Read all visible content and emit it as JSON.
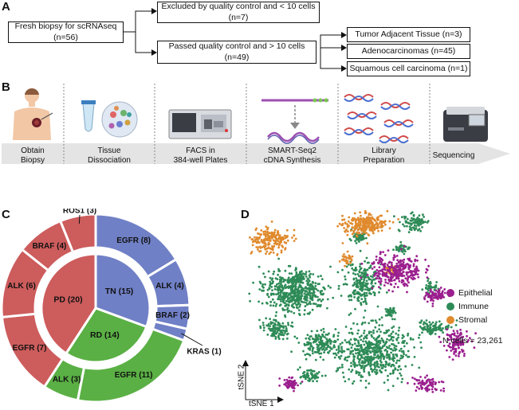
{
  "panels": {
    "a": "A",
    "b": "B",
    "c": "C",
    "d": "D"
  },
  "flow": {
    "root_line1": "Fresh biopsy for scRNAseq",
    "root_line2": "(n=56)",
    "excluded_line1": "Excluded by quality control and < 10 cells",
    "excluded_line2": "(n=7)",
    "passed_line1": "Passed quality control and > 10 cells",
    "passed_line2": "(n=49)",
    "outcomes": [
      "Tumor Adjacent Tissue (n=3)",
      "Adenocarcinomas (n=45)",
      "Squamous cell carcinoma (n=1)"
    ]
  },
  "workflow": {
    "steps": [
      {
        "line1": "Obtain",
        "line2": "Biopsy"
      },
      {
        "line1": "Tissue",
        "line2": "Dissociation"
      },
      {
        "line1": "FACS in",
        "line2": "384-well Plates"
      },
      {
        "line1": "SMART-Seq2",
        "line2": "cDNA Synthesis"
      },
      {
        "line1": "Library",
        "line2": "Preparation"
      },
      {
        "line1": "Sequencing",
        "line2": ""
      }
    ]
  },
  "donut": {
    "colors": {
      "tn": "#7080c6",
      "pd": "#cd5c5c",
      "rd": "#5ab044"
    },
    "inner": [
      {
        "label": "TN (15)",
        "value": 15,
        "group": "tn"
      },
      {
        "label": "RD (14)",
        "value": 14,
        "group": "rd"
      },
      {
        "label": "PD (20)",
        "value": 20,
        "group": "pd"
      }
    ],
    "outer": [
      {
        "label": "EGFR (8)",
        "value": 8,
        "group": "tn"
      },
      {
        "label": "ALK (4)",
        "value": 4,
        "group": "tn"
      },
      {
        "label": "BRAF (2)",
        "value": 2,
        "group": "tn"
      },
      {
        "label": "KRAS (1)",
        "value": 1,
        "group": "tn"
      },
      {
        "label": "EGFR (11)",
        "value": 11,
        "group": "rd"
      },
      {
        "label": "ALK (3)",
        "value": 3,
        "group": "rd"
      },
      {
        "label": "EGFR (7)",
        "value": 7,
        "group": "pd"
      },
      {
        "label": "ALK (6)",
        "value": 6,
        "group": "pd"
      },
      {
        "label": "BRAF (4)",
        "value": 4,
        "group": "pd"
      },
      {
        "label": "ROS1 (3)",
        "value": 3,
        "group": "pd"
      }
    ]
  },
  "tsne": {
    "legend": [
      {
        "label": "Epithelial",
        "color": "#9b1f8e"
      },
      {
        "label": "Immune",
        "color": "#2e8b57"
      },
      {
        "label": "Stromal",
        "color": "#e08a2e"
      }
    ],
    "count_text": "N cells = 23,261",
    "x_axis": "tSNE 1",
    "y_axis": "tSNE 2"
  }
}
